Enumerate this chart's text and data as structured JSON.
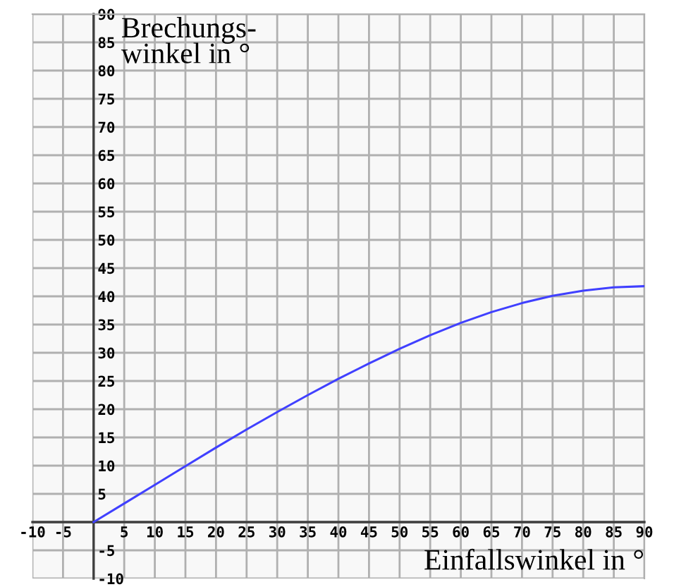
{
  "chart_data": {
    "type": "line",
    "xlabel": "Einfallswinkel in °",
    "ylabel": "Brechungs-\nwinkel in °",
    "x": [
      0,
      5,
      10,
      15,
      20,
      25,
      30,
      35,
      40,
      45,
      50,
      55,
      60,
      65,
      70,
      75,
      80,
      85,
      90
    ],
    "series": [
      {
        "color": "#4040ff",
        "values": [
          0,
          3.3,
          6.6,
          9.9,
          13.2,
          16.4,
          19.5,
          22.5,
          25.4,
          28.1,
          30.7,
          33.1,
          35.3,
          37.2,
          38.8,
          40.1,
          41.0,
          41.6,
          41.8
        ]
      }
    ],
    "xlim": [
      -10,
      90
    ],
    "ylim": [
      -10,
      90
    ],
    "xticks": [
      -10,
      -5,
      {
        "value": 0,
        "label": null
      },
      5,
      10,
      15,
      20,
      25,
      30,
      35,
      40,
      45,
      50,
      55,
      60,
      65,
      70,
      75,
      80,
      85,
      90
    ],
    "yticks": [
      -10,
      -5,
      {
        "value": 0,
        "label": null
      },
      5,
      10,
      15,
      20,
      25,
      30,
      35,
      40,
      45,
      50,
      55,
      60,
      65,
      70,
      75,
      80,
      85,
      90
    ],
    "grid": true,
    "legend": false,
    "marker": "none",
    "line_style": "solid"
  }
}
